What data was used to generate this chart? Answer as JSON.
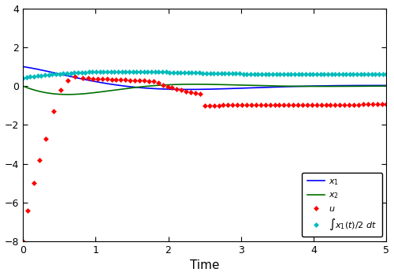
{
  "title": "",
  "xlabel": "Time",
  "ylabel": "",
  "xlim": [
    0,
    5
  ],
  "ylim": [
    -8,
    4
  ],
  "yticks": [
    -8,
    -6,
    -4,
    -2,
    0,
    2,
    4
  ],
  "xticks": [
    0,
    1,
    2,
    3,
    4,
    5
  ],
  "x1_color": "#0000FF",
  "x2_color": "#007000",
  "u_color": "#FF0000",
  "int_color": "#00BBBB",
  "bg_color": "#FFFFFF",
  "fig_color": "#FFFFFF"
}
